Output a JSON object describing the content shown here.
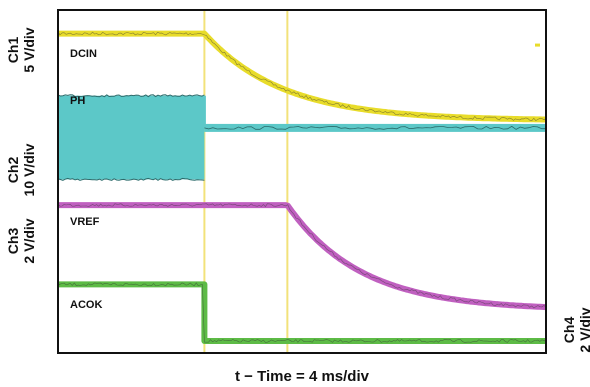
{
  "chart_data": {
    "type": "line",
    "xlabel": "t − Time = 4 ms/div",
    "x_divisions": 10,
    "y_divisions": 8,
    "grid": false,
    "cursors_div": [
      3.0,
      4.7
    ],
    "channel_labels": [
      {
        "id": "ch1",
        "line1": "Ch1",
        "line2": "5 V/div"
      },
      {
        "id": "ch2",
        "line1": "Ch2",
        "line2": "10 V/div"
      },
      {
        "id": "ch3",
        "line1": "Ch3",
        "line2": "2 V/div"
      },
      {
        "id": "ch4",
        "line1": "Ch4",
        "line2": "2 V/div"
      }
    ],
    "series": [
      {
        "name": "DCIN",
        "color": "#e8dc2a",
        "shape": "exp-decay",
        "start_level_div": 7.45,
        "end_level_div": 5.42,
        "event_div": 3.0,
        "tau_div": 1.6
      },
      {
        "name": "PH",
        "color": "#5cc8c8",
        "shape": "switching-then-flat",
        "band_top_div": 6.0,
        "band_bottom_div": 4.05,
        "after_level_div": 5.25,
        "event_div": 3.0
      },
      {
        "name": "VREF",
        "color": "#c060c0",
        "shape": "flat-then-decay",
        "start_level_div": 3.45,
        "end_level_div": 1.0,
        "event_div": 4.7,
        "tau_div": 1.5
      },
      {
        "name": "ACOK",
        "color": "#5dbb46",
        "shape": "step-down",
        "start_level_div": 1.6,
        "end_level_div": 0.28,
        "event_div": 3.0
      }
    ],
    "side_color": {
      "ch1": "#e8dc2a"
    }
  }
}
